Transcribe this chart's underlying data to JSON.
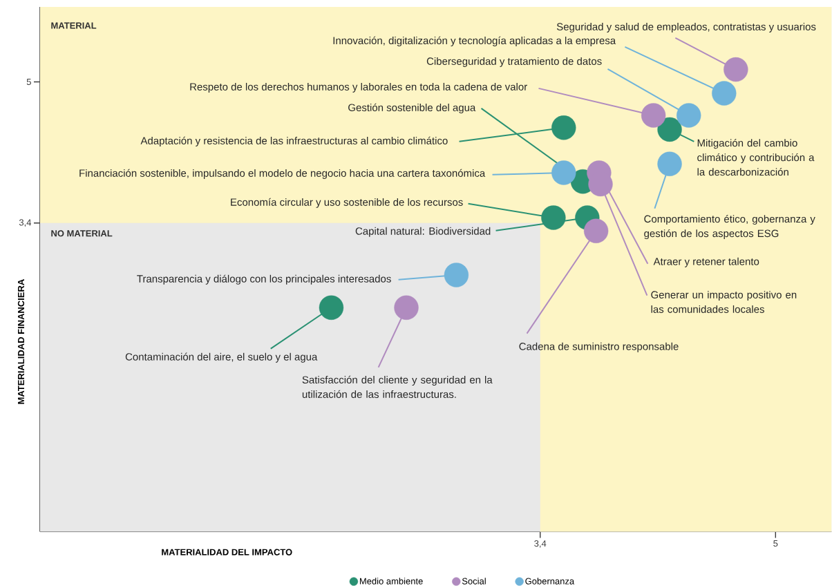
{
  "chart_data": {
    "type": "scatter",
    "xlabel": "MATERIALIDAD DEL IMPACTO",
    "ylabel": "MATERIALIDAD FINANCIERA",
    "xlim": [
      0,
      5.38
    ],
    "ylim": [
      -0.1,
      5.85
    ],
    "xticks": [
      {
        "value": 3.4,
        "label": "3,4"
      },
      5
    ],
    "yticks": [
      {
        "value": 3.4,
        "label": "3,4"
      },
      5
    ],
    "marker": "circle",
    "legend": "bottom",
    "series": [
      {
        "name": "Medio ambiente",
        "color": "#2a9173",
        "x": [
          3.56,
          3.69,
          4.28,
          3.49,
          3.72,
          1.98
        ],
        "values": [
          4.48,
          3.87,
          4.46,
          3.46,
          3.46,
          2.44
        ]
      },
      {
        "name": "Social",
        "color": "#b08bbf",
        "x": [
          4.73,
          4.17,
          3.8,
          3.81,
          3.78,
          2.49
        ],
        "values": [
          5.14,
          4.62,
          3.97,
          3.84,
          3.31,
          2.44
        ]
      },
      {
        "name": "Gobernanza",
        "color": "#6fb3da",
        "x": [
          4.65,
          4.41,
          3.56,
          4.28,
          2.83
        ],
        "values": [
          4.87,
          4.62,
          3.97,
          4.07,
          2.81
        ]
      }
    ],
    "bands": [
      {
        "axis": "y",
        "from": 3.4,
        "to": 5.85,
        "label": "MATERIAL",
        "color": "#fdf5c5"
      },
      {
        "axis": "x",
        "from": 3.4,
        "to": 5.38,
        "color": "#fdf5c5"
      }
    ],
    "annotations": [
      {
        "text": "Seguridad y salud de empleados, contratistas y usuarios",
        "x": 4.73,
        "y": 5.14
      },
      {
        "text": "Innovación, digitalización y tecnología aplicadas a la empresa",
        "x": 4.65,
        "y": 4.87
      },
      {
        "text": "Ciberseguridad y tratamiento de datos",
        "x": 4.41,
        "y": 4.62
      },
      {
        "text": "Respeto de los derechos humanos y laborales en toda la cadena de valor",
        "x": 4.17,
        "y": 4.62
      },
      {
        "text": "Gestión sostenible del agua",
        "x": 3.69,
        "y": 3.87
      },
      {
        "text": "Adaptación y resistencia de las infraestructuras al cambio climático",
        "x": 3.56,
        "y": 4.48
      },
      {
        "text": "Financiación sostenible, impulsando el modelo de negocio hacia una cartera taxonómica",
        "x": 3.56,
        "y": 3.97
      },
      {
        "text": "Economía circular y uso sostenible de los recursos",
        "x": 3.49,
        "y": 3.46
      },
      {
        "text": "Capital natural: Biodiversidad",
        "x": 3.72,
        "y": 3.46
      },
      {
        "text": "Mitigación del cambio climático y contribución a la descarbonización",
        "x": 4.28,
        "y": 4.46
      },
      {
        "text": "Comportamiento ético, gobernanza y gestión de los aspectos ESG",
        "x": 4.28,
        "y": 4.07
      },
      {
        "text": "Atraer y retener talento",
        "x": 3.8,
        "y": 3.97
      },
      {
        "text": "Generar un impacto positivo en las comunidades locales",
        "x": 3.81,
        "y": 3.84
      },
      {
        "text": "Cadena de suministro responsable",
        "x": 3.78,
        "y": 3.31
      },
      {
        "text": "Transparencia y diálogo con los principales interesados",
        "x": 2.83,
        "y": 2.81
      },
      {
        "text": "Contaminación del aire, el suelo y el agua",
        "x": 1.98,
        "y": 2.44
      },
      {
        "text": "Satisfacción del cliente y seguridad en la utilización de las infraestructuras.",
        "x": 2.49,
        "y": 2.44
      },
      "NO MATERIAL"
    ]
  }
}
